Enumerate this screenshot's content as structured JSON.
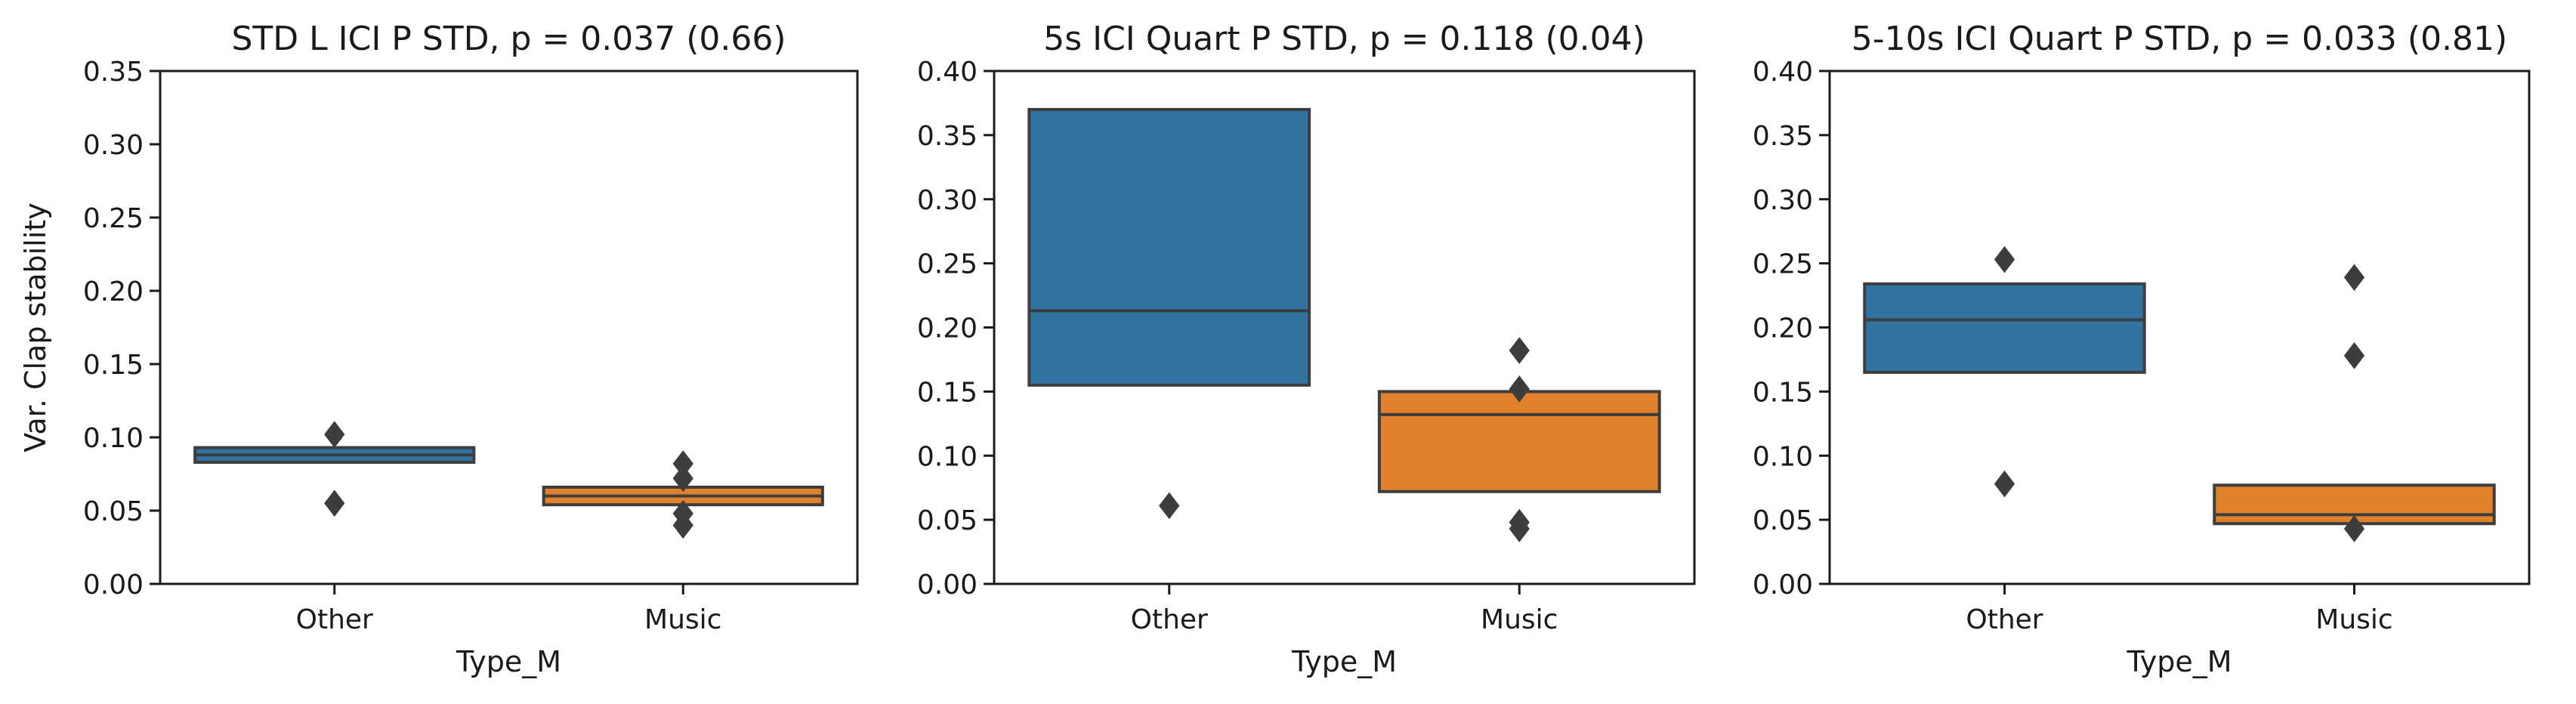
{
  "colors": {
    "Other": "#3274a1",
    "Music": "#e1812c",
    "outline": "#3d3d3d",
    "axis": "#1a1a1a"
  },
  "chart_data": [
    {
      "type": "boxen",
      "title": "STD L ICI P STD, p = 0.037 (0.66)",
      "xlabel": "Type_M",
      "ylabel": "Var. Clap stability",
      "categories": [
        "Other",
        "Music"
      ],
      "ylim": [
        0,
        0.35
      ],
      "yticks": [
        0,
        0.05,
        0.1,
        0.15,
        0.2,
        0.25,
        0.3,
        0.35
      ],
      "ytick_labels": [
        "0.00",
        "0.05",
        "0.10",
        "0.15",
        "0.20",
        "0.25",
        "0.30",
        "0.35"
      ],
      "boxes": [
        {
          "category": "Other",
          "q1": 0.083,
          "median": 0.088,
          "q3": 0.093,
          "outliers": [
            0.102,
            0.055
          ]
        },
        {
          "category": "Music",
          "q1": 0.054,
          "median": 0.06,
          "q3": 0.066,
          "outliers": [
            0.082,
            0.072,
            0.048,
            0.04
          ]
        }
      ]
    },
    {
      "type": "boxen",
      "title": "5s ICI Quart P STD, p = 0.118 (0.04)",
      "xlabel": "Type_M",
      "ylabel": "",
      "categories": [
        "Other",
        "Music"
      ],
      "ylim": [
        0,
        0.4
      ],
      "yticks": [
        0,
        0.05,
        0.1,
        0.15,
        0.2,
        0.25,
        0.3,
        0.35,
        0.4
      ],
      "ytick_labels": [
        "0.00",
        "0.05",
        "0.10",
        "0.15",
        "0.20",
        "0.25",
        "0.30",
        "0.35",
        "0.40"
      ],
      "boxes": [
        {
          "category": "Other",
          "q1": 0.155,
          "median": 0.213,
          "q3": 0.37,
          "outliers": [
            0.061
          ]
        },
        {
          "category": "Music",
          "q1": 0.072,
          "median": 0.132,
          "q3": 0.15,
          "outliers": [
            0.182,
            0.152,
            0.048,
            0.043
          ]
        }
      ]
    },
    {
      "type": "boxen",
      "title": "5-10s ICI Quart P STD, p = 0.033 (0.81)",
      "xlabel": "Type_M",
      "ylabel": "",
      "categories": [
        "Other",
        "Music"
      ],
      "ylim": [
        0,
        0.4
      ],
      "yticks": [
        0,
        0.05,
        0.1,
        0.15,
        0.2,
        0.25,
        0.3,
        0.35,
        0.4
      ],
      "ytick_labels": [
        "0.00",
        "0.05",
        "0.10",
        "0.15",
        "0.20",
        "0.25",
        "0.30",
        "0.35",
        "0.40"
      ],
      "boxes": [
        {
          "category": "Other",
          "q1": 0.165,
          "median": 0.206,
          "q3": 0.234,
          "outliers": [
            0.253,
            0.078
          ]
        },
        {
          "category": "Music",
          "q1": 0.047,
          "median": 0.054,
          "q3": 0.077,
          "outliers": [
            0.239,
            0.178,
            0.043
          ]
        }
      ]
    }
  ]
}
